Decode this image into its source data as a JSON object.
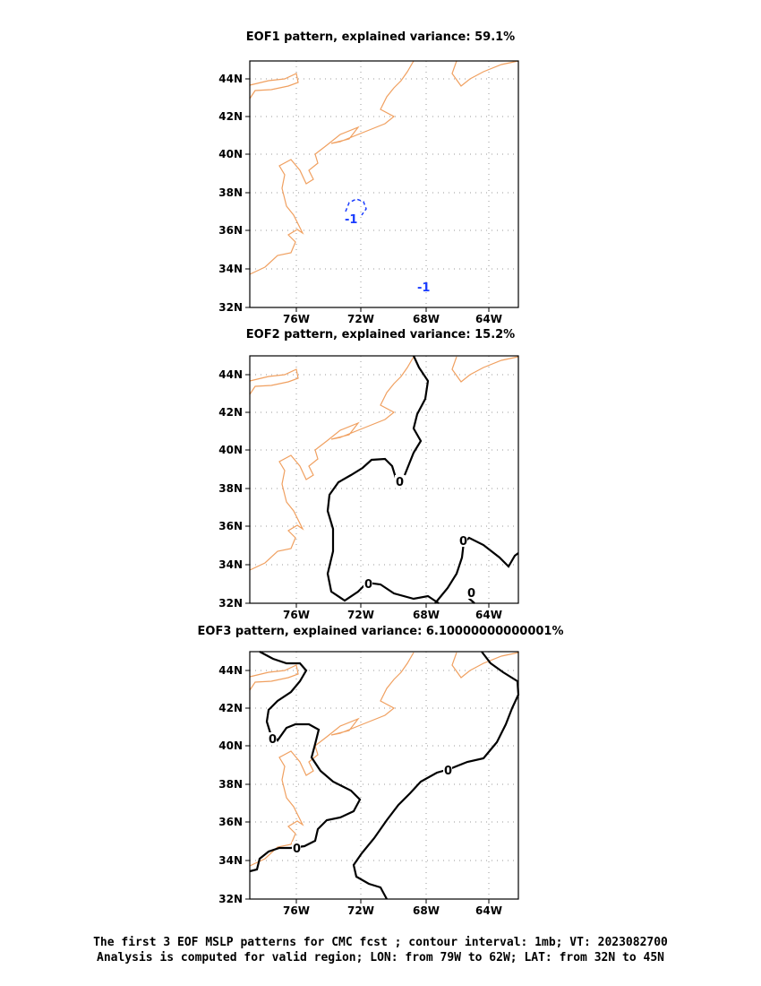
{
  "panels": [
    {
      "title": "EOF1 pattern, explained variance: 59.1%",
      "lon_ticks": [
        "76W",
        "72W",
        "68W",
        "64W"
      ],
      "lat_ticks": [
        "44N",
        "42N",
        "40N",
        "38N",
        "36N",
        "34N",
        "32N"
      ],
      "contour_labels": [
        "-1",
        "-1"
      ]
    },
    {
      "title": "EOF2 pattern, explained variance: 15.2%",
      "lon_ticks": [
        "76W",
        "72W",
        "68W",
        "64W"
      ],
      "lat_ticks": [
        "44N",
        "42N",
        "40N",
        "38N",
        "36N",
        "34N",
        "32N"
      ],
      "contour_labels": [
        "0",
        "0",
        "0",
        "0"
      ]
    },
    {
      "title": "EOF3 pattern, explained variance: 6.10000000000001%",
      "lon_ticks": [
        "76W",
        "72W",
        "68W",
        "64W"
      ],
      "lat_ticks": [
        "44N",
        "42N",
        "40N",
        "38N",
        "36N",
        "34N",
        "32N"
      ],
      "contour_labels": [
        "0",
        "0",
        "0"
      ]
    }
  ],
  "caption": {
    "line1": "The first 3 EOF MSLP patterns for CMC fcst ; contour interval: 1mb; VT: 2023082700",
    "line2": "Analysis is computed for valid region; LON: from 79W to 62W; LAT: from 32N to 45N"
  },
  "colors": {
    "coastline": "#f0a060",
    "negative_contour": "#1a3cff",
    "zero_contour": "#000000",
    "grid": "#999999"
  }
}
